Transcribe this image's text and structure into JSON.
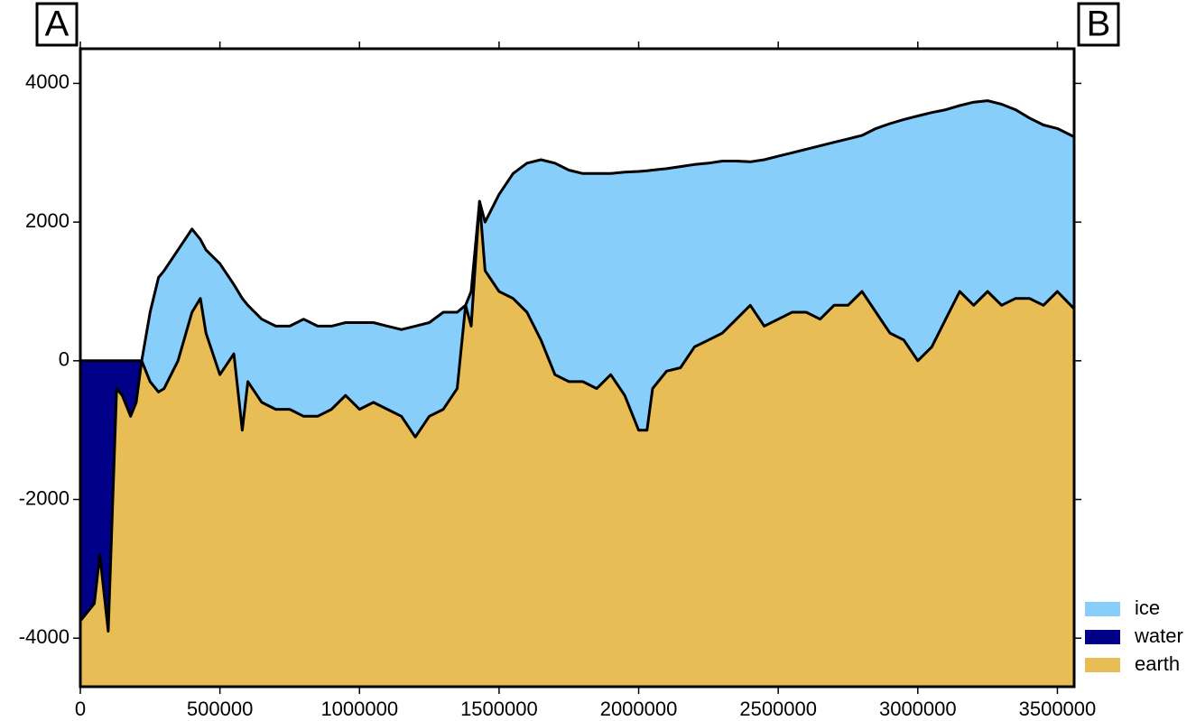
{
  "chart_data": {
    "type": "profile",
    "corner_labels": [
      "A",
      "B"
    ],
    "x": [
      0,
      50000,
      70000,
      100000,
      130000,
      150000,
      180000,
      200000,
      220000,
      250000,
      280000,
      300000,
      350000,
      400000,
      430000,
      450000,
      500000,
      550000,
      580000,
      600000,
      650000,
      700000,
      750000,
      800000,
      850000,
      900000,
      950000,
      1000000,
      1050000,
      1100000,
      1150000,
      1200000,
      1250000,
      1300000,
      1350000,
      1380000,
      1400000,
      1430000,
      1450000,
      1500000,
      1550000,
      1600000,
      1650000,
      1700000,
      1750000,
      1800000,
      1850000,
      1900000,
      1950000,
      2000000,
      2030000,
      2050000,
      2100000,
      2150000,
      2200000,
      2250000,
      2300000,
      2350000,
      2400000,
      2450000,
      2500000,
      2550000,
      2600000,
      2650000,
      2700000,
      2750000,
      2800000,
      2850000,
      2900000,
      2950000,
      3000000,
      3050000,
      3100000,
      3150000,
      3200000,
      3250000,
      3300000,
      3350000,
      3400000,
      3450000,
      3500000,
      3560000
    ],
    "series": [
      {
        "name": "ice",
        "color": "#87cefa",
        "values": [
          null,
          null,
          null,
          null,
          null,
          null,
          null,
          null,
          0,
          700,
          1200,
          1300,
          1600,
          1900,
          1750,
          1600,
          1400,
          1100,
          900,
          800,
          600,
          500,
          500,
          600,
          500,
          500,
          550,
          550,
          550,
          500,
          450,
          500,
          550,
          700,
          700,
          800,
          1000,
          2300,
          2000,
          2400,
          2700,
          2850,
          2900,
          2850,
          2750,
          2700,
          2700,
          2700,
          2720,
          2730,
          2740,
          2750,
          2770,
          2800,
          2830,
          2850,
          2880,
          2880,
          2870,
          2900,
          2950,
          3000,
          3050,
          3100,
          3150,
          3200,
          3250,
          3350,
          3420,
          3480,
          3530,
          3580,
          3620,
          3680,
          3730,
          3750,
          3700,
          3620,
          3500,
          3400,
          3350,
          3230
        ]
      },
      {
        "name": "water",
        "color": "#000088",
        "values": [
          0,
          0,
          0,
          0,
          0,
          0,
          0,
          0,
          0,
          null,
          null,
          null,
          null,
          null,
          null,
          null,
          null,
          null,
          null,
          null,
          null,
          null,
          null,
          null,
          null,
          null,
          null,
          null,
          null,
          null,
          null,
          null,
          null,
          null,
          null,
          null,
          null,
          null,
          null,
          null,
          null,
          null,
          null,
          null,
          null,
          null,
          null,
          null,
          null,
          null,
          null,
          null,
          null,
          null,
          null,
          null,
          null,
          null,
          null,
          null,
          null,
          null,
          null,
          null,
          null,
          null,
          null,
          null,
          null,
          null,
          null,
          null,
          null,
          null,
          null,
          null,
          null,
          null,
          null,
          null,
          null,
          null
        ]
      },
      {
        "name": "earth",
        "color": "#e9bd55",
        "values": [
          -3750,
          -3500,
          -2800,
          -3900,
          -400,
          -500,
          -800,
          -600,
          0,
          -300,
          -450,
          -400,
          0,
          700,
          900,
          400,
          -200,
          100,
          -1000,
          -300,
          -600,
          -700,
          -700,
          -800,
          -800,
          -700,
          -500,
          -700,
          -600,
          -700,
          -800,
          -1100,
          -800,
          -700,
          -400,
          800,
          500,
          2300,
          1300,
          1000,
          900,
          700,
          300,
          -200,
          -300,
          -300,
          -400,
          -200,
          -500,
          -1000,
          -1000,
          -400,
          -150,
          -100,
          200,
          300,
          400,
          600,
          800,
          500,
          600,
          700,
          700,
          600,
          800,
          800,
          1000,
          700,
          400,
          300,
          0,
          200,
          600,
          1000,
          800,
          1000,
          800,
          900,
          900,
          800,
          1000,
          750
        ]
      }
    ],
    "xlim": [
      0,
      3560000
    ],
    "ylim": [
      -4700,
      4500
    ],
    "xticks": [
      0,
      500000,
      1000000,
      1500000,
      2000000,
      2500000,
      3000000,
      3500000
    ],
    "yticks": [
      -4000,
      -2000,
      0,
      2000,
      4000
    ],
    "legend": "lower right"
  }
}
